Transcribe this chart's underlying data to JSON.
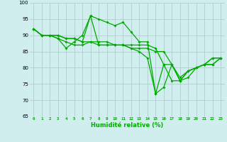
{
  "xlabel": "Humidité relative (%)",
  "xlim": [
    -0.5,
    23.5
  ],
  "ylim": [
    65,
    100
  ],
  "yticks": [
    65,
    70,
    75,
    80,
    85,
    90,
    95,
    100
  ],
  "xticks": [
    0,
    1,
    2,
    3,
    4,
    5,
    6,
    7,
    8,
    9,
    10,
    11,
    12,
    13,
    14,
    15,
    16,
    17,
    18,
    19,
    20,
    21,
    22,
    23
  ],
  "background_color": "#d0eeee",
  "grid_color": "#b0cccc",
  "line_color": "#00aa00",
  "series": [
    [
      92,
      90,
      90,
      89,
      86,
      88,
      90,
      96,
      95,
      94,
      93,
      94,
      91,
      88,
      88,
      72,
      74,
      81,
      76,
      77,
      80,
      81,
      83,
      83
    ],
    [
      92,
      90,
      90,
      89,
      88,
      87,
      87,
      88,
      87,
      87,
      87,
      87,
      86,
      86,
      86,
      85,
      85,
      81,
      77,
      79,
      80,
      81,
      83,
      83
    ],
    [
      92,
      90,
      90,
      90,
      89,
      89,
      88,
      88,
      88,
      88,
      87,
      87,
      87,
      87,
      87,
      86,
      81,
      81,
      76,
      79,
      80,
      81,
      81,
      83
    ],
    [
      92,
      90,
      90,
      90,
      89,
      89,
      88,
      96,
      87,
      87,
      87,
      87,
      86,
      85,
      83,
      72,
      81,
      76,
      76,
      79,
      80,
      81,
      81,
      83
    ]
  ]
}
